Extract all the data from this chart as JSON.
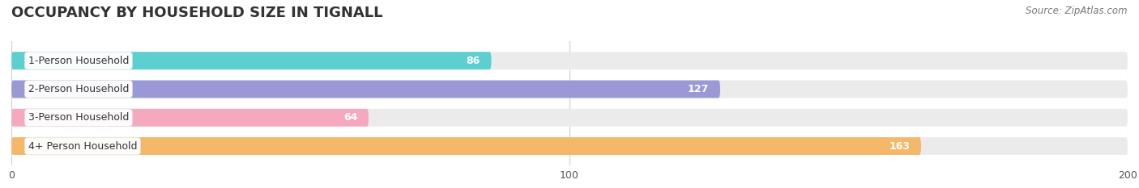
{
  "title": "OCCUPANCY BY HOUSEHOLD SIZE IN TIGNALL",
  "source": "Source: ZipAtlas.com",
  "categories": [
    "1-Person Household",
    "2-Person Household",
    "3-Person Household",
    "4+ Person Household"
  ],
  "values": [
    86,
    127,
    64,
    163
  ],
  "bar_colors": [
    "#5ecfcf",
    "#9999d6",
    "#f5a8be",
    "#f5b86a"
  ],
  "track_color": "#ebebeb",
  "xlim": [
    0,
    200
  ],
  "xticks": [
    0,
    100,
    200
  ],
  "figsize": [
    14.06,
    2.33
  ],
  "dpi": 100,
  "title_fontsize": 13,
  "label_fontsize": 9,
  "value_fontsize": 9,
  "tick_fontsize": 9,
  "source_fontsize": 8.5
}
